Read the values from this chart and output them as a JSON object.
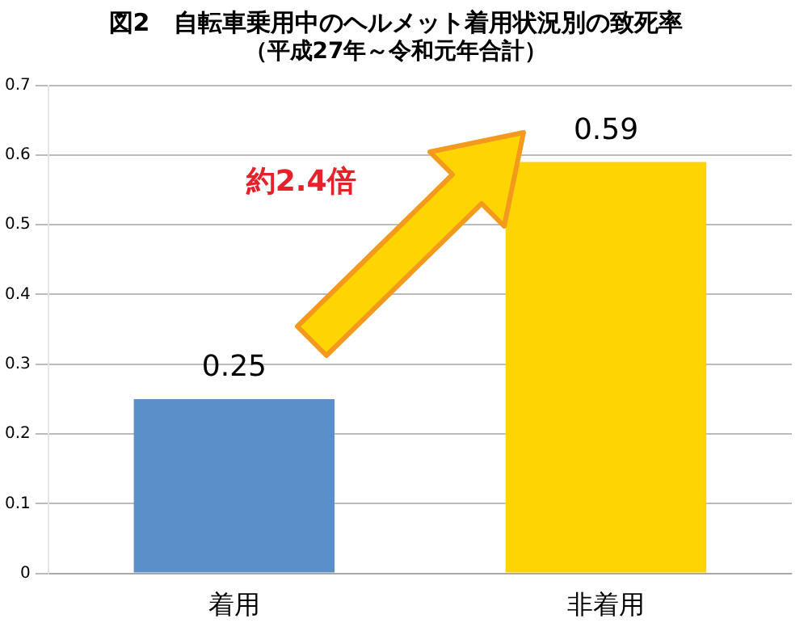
{
  "chart_data": {
    "type": "bar",
    "title": "図2　自転車乗用中のヘルメット着用状況別の致死率",
    "subtitle": "（平成27年～令和元年合計）",
    "categories": [
      "着用",
      "非着用"
    ],
    "values": [
      0.25,
      0.59
    ],
    "colors": [
      "#5b8fc9",
      "#ffd400"
    ],
    "ylim": [
      0,
      0.7
    ],
    "yticks": [
      0,
      0.1,
      0.2,
      0.3,
      0.4,
      0.5,
      0.6,
      0.7
    ],
    "grid": "y",
    "data_labels": true,
    "legend": false,
    "annotations": [
      "約2.4倍"
    ]
  }
}
